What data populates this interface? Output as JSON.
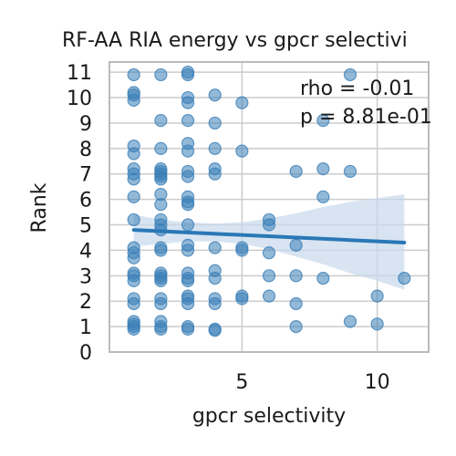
{
  "chart_data": {
    "type": "scatter",
    "title": "RF-AA RIA energy vs gpcr selectivi",
    "xlabel": "gpcr selectivity",
    "ylabel": "Rank",
    "xlim": [
      0.1,
      11.9
    ],
    "ylim": [
      0,
      11.4
    ],
    "x_ticks": [
      5,
      10
    ],
    "y_ticks": [
      0,
      1,
      2,
      3,
      4,
      5,
      6,
      7,
      8,
      9,
      10,
      11
    ],
    "grid": true,
    "annotations": [
      "rho = -0.01",
      "p = 8.81e-01"
    ],
    "colors": {
      "points": "#3b7fb8",
      "regression_line": "#2a78b6",
      "confidence_band": "#c7d9ec",
      "grid": "#cccccc",
      "frame": "#bbbbbb"
    },
    "regression": {
      "x": [
        1,
        11
      ],
      "y": [
        4.8,
        4.3
      ]
    },
    "confidence_band": {
      "x": [
        1,
        2,
        3,
        4,
        5,
        6,
        7,
        8,
        9,
        10,
        11
      ],
      "upper": [
        5.4,
        5.2,
        5.1,
        5.05,
        5.1,
        5.25,
        5.45,
        5.7,
        5.9,
        6.05,
        6.2
      ],
      "lower": [
        4.15,
        4.25,
        4.35,
        4.35,
        4.25,
        4.05,
        3.75,
        3.45,
        3.1,
        2.8,
        2.45
      ]
    },
    "points": [
      {
        "x": 1,
        "y": 10.9
      },
      {
        "x": 1,
        "y": 10.2
      },
      {
        "x": 1,
        "y": 10.1
      },
      {
        "x": 1,
        "y": 9.9
      },
      {
        "x": 1,
        "y": 8.1
      },
      {
        "x": 1,
        "y": 7.8
      },
      {
        "x": 1,
        "y": 7.2
      },
      {
        "x": 1,
        "y": 7.0
      },
      {
        "x": 1,
        "y": 6.8
      },
      {
        "x": 1,
        "y": 6.1
      },
      {
        "x": 1,
        "y": 5.2
      },
      {
        "x": 1,
        "y": 4.1
      },
      {
        "x": 1,
        "y": 3.9
      },
      {
        "x": 1,
        "y": 3.7
      },
      {
        "x": 1,
        "y": 3.1
      },
      {
        "x": 1,
        "y": 3.0
      },
      {
        "x": 1,
        "y": 2.8
      },
      {
        "x": 1,
        "y": 2.1
      },
      {
        "x": 1,
        "y": 1.9
      },
      {
        "x": 1,
        "y": 1.2
      },
      {
        "x": 1,
        "y": 1.1
      },
      {
        "x": 1,
        "y": 1.0
      },
      {
        "x": 1,
        "y": 0.9
      },
      {
        "x": 2,
        "y": 10.9
      },
      {
        "x": 2,
        "y": 9.1
      },
      {
        "x": 2,
        "y": 8.0
      },
      {
        "x": 2,
        "y": 7.2
      },
      {
        "x": 2,
        "y": 7.1
      },
      {
        "x": 2,
        "y": 7.0
      },
      {
        "x": 2,
        "y": 6.9
      },
      {
        "x": 2,
        "y": 6.8
      },
      {
        "x": 2,
        "y": 6.2
      },
      {
        "x": 2,
        "y": 5.8
      },
      {
        "x": 2,
        "y": 5.2
      },
      {
        "x": 2,
        "y": 5.0
      },
      {
        "x": 2,
        "y": 4.8
      },
      {
        "x": 2,
        "y": 4.1
      },
      {
        "x": 2,
        "y": 4.0
      },
      {
        "x": 2,
        "y": 3.1
      },
      {
        "x": 2,
        "y": 3.0
      },
      {
        "x": 2,
        "y": 2.9
      },
      {
        "x": 2,
        "y": 2.8
      },
      {
        "x": 2,
        "y": 2.1
      },
      {
        "x": 2,
        "y": 1.9
      },
      {
        "x": 2,
        "y": 1.2
      },
      {
        "x": 2,
        "y": 1.0
      },
      {
        "x": 2,
        "y": 0.9
      },
      {
        "x": 3,
        "y": 11.0
      },
      {
        "x": 3,
        "y": 10.9
      },
      {
        "x": 3,
        "y": 10.0
      },
      {
        "x": 3,
        "y": 9.8
      },
      {
        "x": 3,
        "y": 9.1
      },
      {
        "x": 3,
        "y": 8.2
      },
      {
        "x": 3,
        "y": 7.9
      },
      {
        "x": 3,
        "y": 7.1
      },
      {
        "x": 3,
        "y": 6.9
      },
      {
        "x": 3,
        "y": 6.1
      },
      {
        "x": 3,
        "y": 5.9
      },
      {
        "x": 3,
        "y": 5.8
      },
      {
        "x": 3,
        "y": 5.0
      },
      {
        "x": 3,
        "y": 4.2
      },
      {
        "x": 3,
        "y": 4.0
      },
      {
        "x": 3,
        "y": 3.1
      },
      {
        "x": 3,
        "y": 2.9
      },
      {
        "x": 3,
        "y": 2.8
      },
      {
        "x": 3,
        "y": 2.2
      },
      {
        "x": 3,
        "y": 2.1
      },
      {
        "x": 3,
        "y": 1.9
      },
      {
        "x": 3,
        "y": 1.0
      },
      {
        "x": 3,
        "y": 0.9
      },
      {
        "x": 4,
        "y": 10.1
      },
      {
        "x": 4,
        "y": 9.0
      },
      {
        "x": 4,
        "y": 8.0
      },
      {
        "x": 4,
        "y": 7.2
      },
      {
        "x": 4,
        "y": 7.0
      },
      {
        "x": 4,
        "y": 4.1
      },
      {
        "x": 4,
        "y": 3.2
      },
      {
        "x": 4,
        "y": 2.9
      },
      {
        "x": 4,
        "y": 2.1
      },
      {
        "x": 4,
        "y": 1.9
      },
      {
        "x": 4,
        "y": 0.9
      },
      {
        "x": 4,
        "y": 0.85
      },
      {
        "x": 5,
        "y": 9.8
      },
      {
        "x": 5,
        "y": 7.9
      },
      {
        "x": 5,
        "y": 4.1
      },
      {
        "x": 5,
        "y": 4.0
      },
      {
        "x": 5,
        "y": 2.2
      },
      {
        "x": 5,
        "y": 2.1
      },
      {
        "x": 6,
        "y": 5.2
      },
      {
        "x": 6,
        "y": 5.0
      },
      {
        "x": 6,
        "y": 3.9
      },
      {
        "x": 6,
        "y": 3.0
      },
      {
        "x": 6,
        "y": 2.2
      },
      {
        "x": 7,
        "y": 7.1
      },
      {
        "x": 7,
        "y": 4.2
      },
      {
        "x": 7,
        "y": 3.0
      },
      {
        "x": 7,
        "y": 1.9
      },
      {
        "x": 7,
        "y": 1.0
      },
      {
        "x": 8,
        "y": 9.1
      },
      {
        "x": 8,
        "y": 7.2
      },
      {
        "x": 8,
        "y": 6.1
      },
      {
        "x": 8,
        "y": 2.9
      },
      {
        "x": 9,
        "y": 10.9
      },
      {
        "x": 9,
        "y": 7.1
      },
      {
        "x": 9,
        "y": 1.2
      },
      {
        "x": 10,
        "y": 2.2
      },
      {
        "x": 10,
        "y": 1.1
      },
      {
        "x": 11,
        "y": 2.9
      }
    ]
  }
}
